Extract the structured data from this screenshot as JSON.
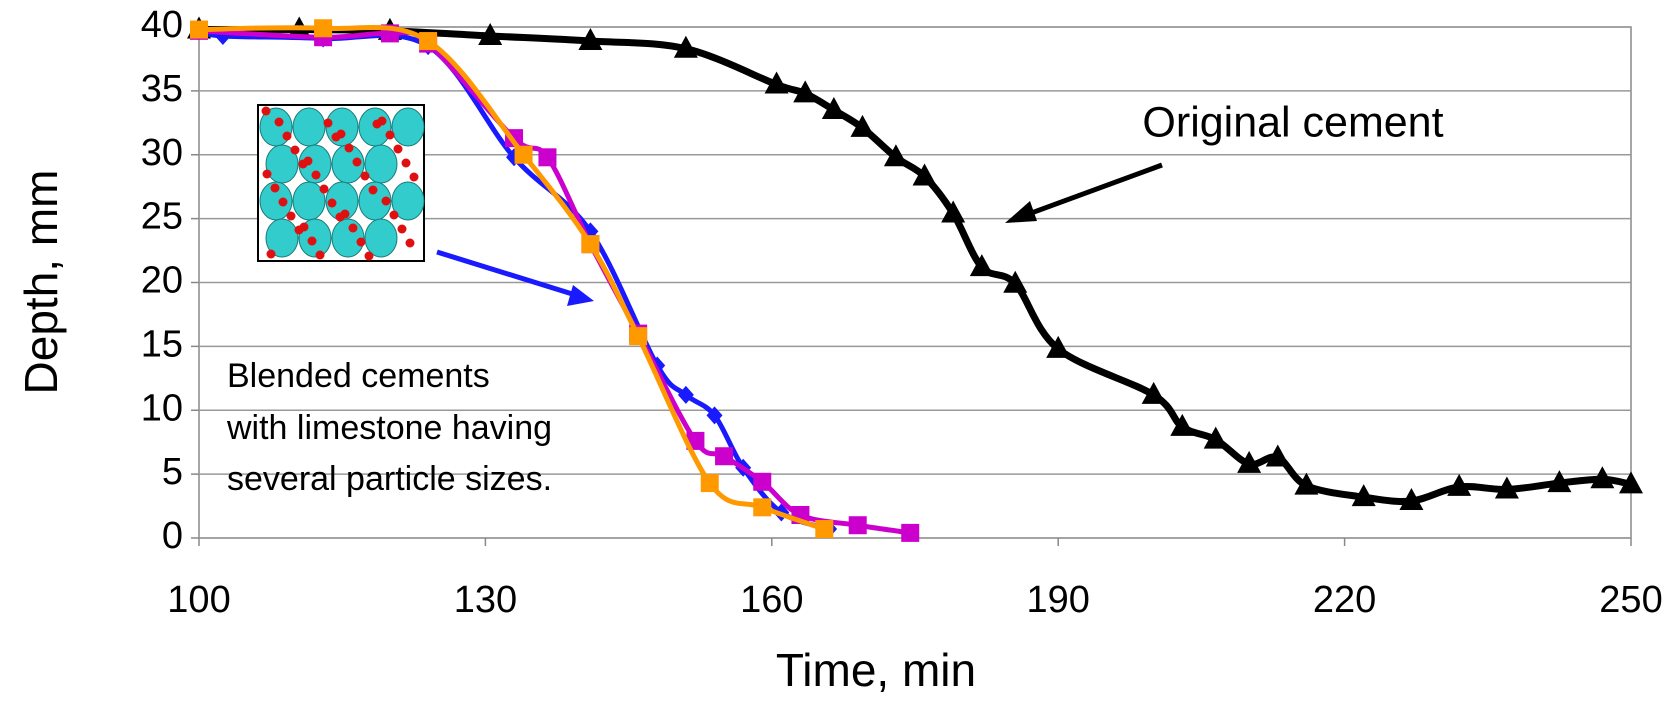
{
  "chart_data": {
    "type": "line",
    "xlabel": "Time, min",
    "ylabel": "Depth, mm",
    "xlim": [
      100,
      250
    ],
    "xticks": [
      100,
      130,
      160,
      190,
      220,
      250
    ],
    "ylim": [
      0,
      40
    ],
    "yticks": [
      0,
      5,
      10,
      15,
      20,
      25,
      30,
      35,
      40
    ],
    "grid": true,
    "annotations": [
      "Original cement",
      "Blended cements",
      "with limestone having",
      "several particle sizes."
    ],
    "series": [
      {
        "color": "#000000",
        "marker": "triangle",
        "x": [
          100,
          110.5,
          120,
          130.5,
          141,
          151,
          160.5,
          163.5,
          166.5,
          169.5,
          173,
          176,
          179,
          182,
          185.5,
          190,
          200,
          203,
          206.5,
          210,
          213,
          216,
          222,
          227,
          232,
          237,
          242.5,
          247,
          250
        ],
        "values": [
          39.8,
          39.8,
          39.7,
          39.3,
          38.9,
          38.3,
          35.5,
          34.8,
          33.5,
          32.1,
          29.8,
          28.3,
          25.4,
          21.2,
          19.9,
          14.8,
          11.2,
          8.7,
          7.7,
          5.8,
          6.3,
          4.1,
          3.2,
          2.9,
          4.0,
          3.8,
          4.3,
          4.6,
          4.2
        ]
      },
      {
        "color": "#1a1aff",
        "marker": "diamond",
        "x": [
          100,
          102.5,
          113,
          124,
          133,
          141,
          148,
          151,
          154,
          157,
          161,
          166
        ],
        "values": [
          39.7,
          39.3,
          39.1,
          38.5,
          29.8,
          24.0,
          13.5,
          11.2,
          9.6,
          5.5,
          2.0,
          0.7
        ]
      },
      {
        "color": "#cc00cc",
        "marker": "square",
        "x": [
          100,
          113,
          120,
          124,
          133,
          136.5,
          141,
          146,
          152,
          155,
          159,
          163,
          169,
          174.5
        ],
        "values": [
          39.7,
          39.2,
          39.5,
          38.7,
          31.3,
          29.8,
          23.0,
          16.0,
          7.6,
          6.4,
          4.4,
          1.8,
          1.0,
          0.4
        ]
      },
      {
        "color": "#ff9900",
        "marker": "square",
        "x": [
          100,
          113,
          124,
          134,
          141,
          146,
          153.5,
          159,
          165.5
        ],
        "values": [
          39.8,
          39.9,
          38.9,
          30.0,
          23.0,
          15.8,
          4.3,
          2.4,
          0.7
        ]
      }
    ]
  }
}
